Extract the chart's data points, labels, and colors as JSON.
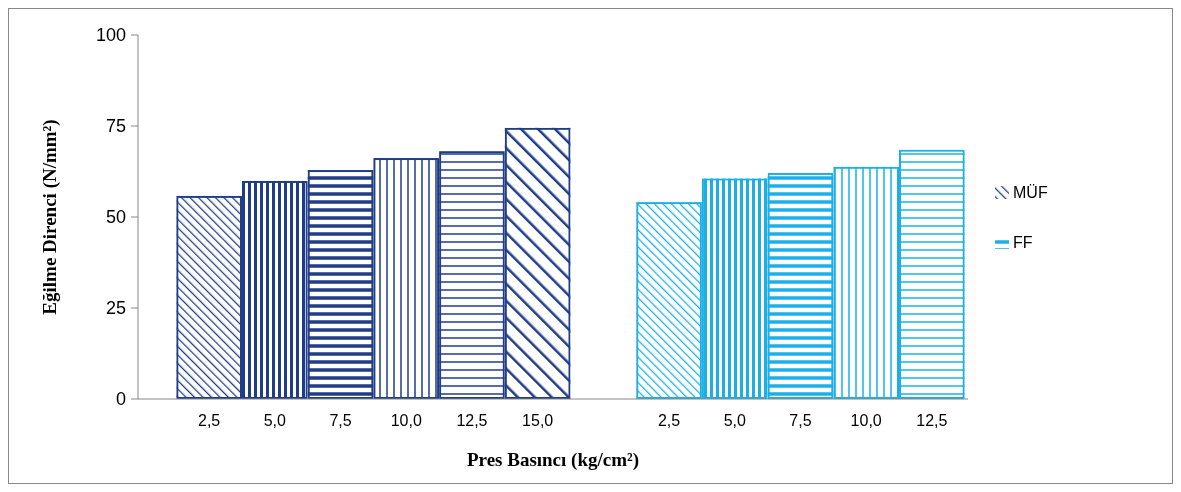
{
  "chart_data": {
    "type": "bar",
    "xlabel": "Pres Basıncı (kg/cm²)",
    "ylabel": "Eğilme Direnci  (N/mm²)",
    "categories": [
      "2,5",
      "5,0",
      "7,5",
      "10,0",
      "12,5",
      "15,0",
      null,
      "2,5",
      "5,0",
      "7,5",
      "10,0",
      "12,5"
    ],
    "series": [
      {
        "name": "MÜF",
        "color": "#1f3c88",
        "values": [
          55.8,
          59.9,
          62.9,
          66.2,
          68.1,
          74.5,
          null,
          null,
          null,
          null,
          null,
          null
        ]
      },
      {
        "name": "FF",
        "color": "#1ab0e6",
        "values": [
          null,
          null,
          null,
          null,
          null,
          null,
          null,
          54.1,
          60.6,
          62.1,
          63.8,
          68.5
        ]
      }
    ],
    "ylim": [
      0,
      100
    ],
    "yticks": [
      0,
      25,
      50,
      75,
      100
    ],
    "grid": false,
    "legend": "right"
  }
}
